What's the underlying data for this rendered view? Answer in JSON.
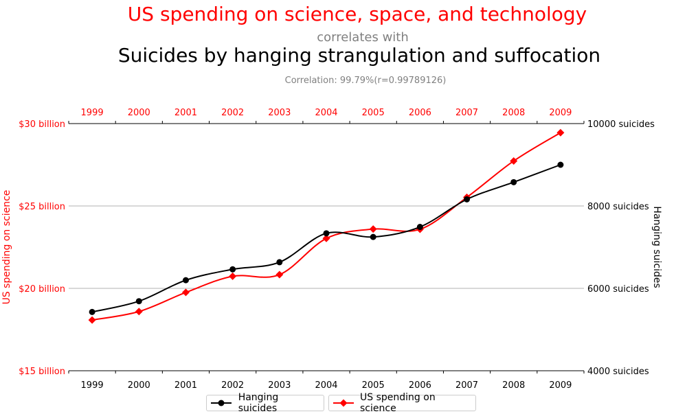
{
  "chart_data": {
    "type": "line",
    "title": "US spending on science, space, and technology",
    "subtitle": "correlates with",
    "title2": "Suicides by hanging strangulation and suffocation",
    "correlation_text": "Correlation: 99.79%(r=0.99789126)",
    "x": [
      "1999",
      "2000",
      "2001",
      "2002",
      "2003",
      "2004",
      "2005",
      "2006",
      "2007",
      "2008",
      "2009"
    ],
    "left_axis": {
      "label": "US spending on science",
      "ylim": [
        15,
        30
      ],
      "ticks": [
        15,
        20,
        25,
        30
      ],
      "tick_labels": [
        "$15 billion",
        "$20 billion",
        "$25 billion",
        "$30 billion"
      ],
      "color": "#ff0000"
    },
    "right_axis": {
      "label": "Hanging suicides",
      "ylim": [
        4000,
        10000
      ],
      "ticks": [
        4000,
        6000,
        8000,
        10000
      ],
      "tick_labels": [
        "4000 suicides",
        "6000 suicides",
        "8000 suicides",
        "10000 suicides"
      ],
      "color": "#000000"
    },
    "series": [
      {
        "name": "Hanging suicides",
        "axis": "right",
        "color": "#000000",
        "marker": "circle",
        "values": [
          5427,
          5688,
          6198,
          6462,
          6635,
          7336,
          7248,
          7491,
          8161,
          8578,
          9000
        ]
      },
      {
        "name": "US spending on science",
        "axis": "left",
        "color": "#ff0000",
        "marker": "diamond",
        "values": [
          18.079,
          18.594,
          19.753,
          20.734,
          20.831,
          23.029,
          23.597,
          23.584,
          25.525,
          27.731,
          29.449
        ]
      }
    ],
    "grid": true,
    "legend_position": "bottom-center"
  }
}
